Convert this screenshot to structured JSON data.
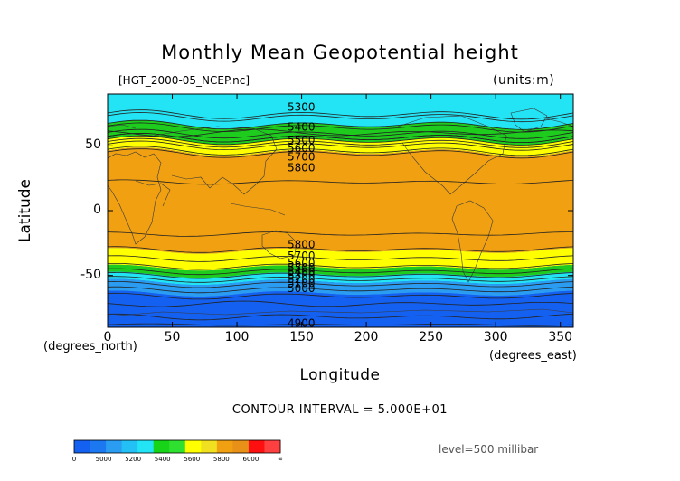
{
  "header": {
    "title": "Monthly Mean Geopotential height",
    "file": "[HGT_2000-05_NCEP.nc]",
    "units": "(units:m)"
  },
  "footer": {
    "contour_interval": "CONTOUR INTERVAL = 5.000E+01",
    "level": "level=500 millibar"
  },
  "chart_data": {
    "type": "contour",
    "title": "Monthly Mean Geopotential height",
    "xlabel": "Longitude",
    "ylabel": "Latitude",
    "xunit": "(degrees_east)",
    "yunit": "(degrees_north)",
    "xlim": [
      0,
      360
    ],
    "ylim": [
      -90,
      90
    ],
    "xticks": [
      0,
      50,
      100,
      150,
      200,
      250,
      300,
      350
    ],
    "yticks": [
      50,
      0,
      -50
    ],
    "contour_interval": 50,
    "contour_labels_north": [
      "5300",
      "5400",
      "5500",
      "5600",
      "5700",
      "5800"
    ],
    "contour_labels_south": [
      "5800",
      "5700",
      "5600",
      "5500",
      "5400",
      "5300",
      "5200",
      "5100",
      "5000",
      "4900"
    ],
    "bands": [
      {
        "range": "<5000",
        "color": "#1460f0"
      },
      {
        "range": "5000-5200",
        "color": "#2a9cf2"
      },
      {
        "range": "5200-5400",
        "color": "#22e4f4"
      },
      {
        "range": "5400-5600",
        "color": "#1ecc1e"
      },
      {
        "range": "5600-5800",
        "color": "#ffff00"
      },
      {
        "range": "5800-6000",
        "color": "#f0a010"
      },
      {
        "range": ">6000",
        "color": "#ff1010"
      }
    ],
    "colorbar": {
      "labels": [
        "0",
        "5000",
        "5200",
        "5400",
        "5600",
        "5800",
        "6000",
        "∞"
      ],
      "colors": [
        "#1460f0",
        "#1c78f0",
        "#2a9cf2",
        "#22c0f4",
        "#22e4f4",
        "#18d418",
        "#30e030",
        "#ffff00",
        "#f0e020",
        "#f0a010",
        "#e89018",
        "#ff1010",
        "#ff4040"
      ]
    }
  }
}
